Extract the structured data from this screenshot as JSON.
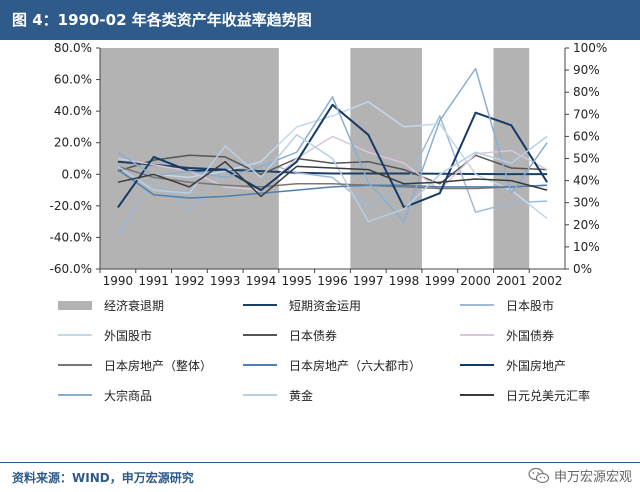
{
  "header": {
    "title": "图 4：1990-02 年各类资产年收益率趋势图"
  },
  "source": {
    "text": "资料来源：WIND，申万宏源研究"
  },
  "watermark": {
    "text": "申万宏源宏观",
    "icon": "wechat-icon"
  },
  "chart_data": {
    "type": "line",
    "x": [
      "1990",
      "1991",
      "1992",
      "1993",
      "1994",
      "1995",
      "1996",
      "1997",
      "1998",
      "1999",
      "2000",
      "2001",
      "2002"
    ],
    "left_axis": {
      "ticks": [
        "80.0%",
        "60.0%",
        "40.0%",
        "20.0%",
        "0.0%",
        "-20.0%",
        "-40.0%",
        "-60.0%"
      ],
      "ylim": [
        -60,
        80
      ]
    },
    "right_axis": {
      "ticks": [
        "100%",
        "90%",
        "80%",
        "70%",
        "60%",
        "50%",
        "40%",
        "30%",
        "20%",
        "10%",
        "0%"
      ],
      "ylim": [
        0,
        100
      ]
    },
    "recessions": [
      {
        "name": "经济衰退期",
        "start": "1990",
        "end": "1994"
      },
      {
        "start": "1997",
        "end": "1998"
      },
      {
        "start": "2001",
        "end": "2001"
      }
    ],
    "series": [
      {
        "name": "短期资金运用",
        "color": "#1c3f66",
        "width": 2,
        "axis": "left",
        "values": [
          8,
          6,
          4,
          3,
          2,
          1,
          0.5,
          0.5,
          0.5,
          0.3,
          0.2,
          0.1,
          0.1
        ]
      },
      {
        "name": "日本股市",
        "color": "#9fbad6",
        "width": 1.5,
        "axis": "left",
        "values": [
          -38,
          -3,
          -24,
          3,
          8,
          1,
          -2,
          -20,
          -9,
          37,
          -24,
          -18,
          -17
        ]
      },
      {
        "name": "外国股市",
        "color": "#c5d7eb",
        "width": 1.5,
        "axis": "left",
        "values": [
          -5,
          0,
          -2,
          2,
          8,
          30,
          37,
          46,
          30,
          32,
          0,
          -10,
          -28
        ]
      },
      {
        "name": "日本债券",
        "color": "#555555",
        "width": 1.5,
        "axis": "left",
        "values": [
          2,
          9,
          12,
          11,
          0,
          10,
          7,
          8,
          3,
          -6,
          12,
          4,
          3
        ]
      },
      {
        "name": "外国债券",
        "color": "#d8c6dc",
        "width": 1.5,
        "axis": "left",
        "values": [
          10,
          6,
          2,
          -8,
          -10,
          10,
          24,
          14,
          7,
          -10,
          13,
          15,
          3
        ]
      },
      {
        "name": "日本房地产（整体）",
        "color": "#777777",
        "width": 1.5,
        "axis": "left",
        "values": [
          5,
          -2,
          -5,
          -7,
          -8,
          -6,
          -6,
          -7,
          -8,
          -9,
          -9,
          -8,
          -7
        ]
      },
      {
        "name": "日本房地产（六大都市）",
        "color": "#4f7fb0",
        "width": 1.5,
        "axis": "left",
        "values": [
          3,
          -13,
          -15,
          -14,
          -12,
          -10,
          -8,
          -7,
          -7,
          -8,
          -8,
          -8,
          -7
        ]
      },
      {
        "name": "外国房地产",
        "color": "#143a66",
        "width": 2,
        "axis": "left",
        "values": [
          -21,
          11,
          2,
          3,
          -10,
          8,
          44,
          25,
          -21,
          -12,
          39,
          31,
          -5
        ]
      },
      {
        "name": "大宗商品",
        "color": "#8aaed2",
        "width": 1.5,
        "axis": "left",
        "values": [
          14,
          -1,
          2,
          -2,
          5,
          14,
          49,
          -5,
          -30,
          34,
          67,
          -12,
          20
        ]
      },
      {
        "name": "黄金",
        "color": "#b8cfe6",
        "width": 1.5,
        "axis": "left",
        "values": [
          5,
          -10,
          -12,
          18,
          -2,
          25,
          10,
          -30,
          -22,
          0,
          14,
          7,
          24
        ]
      },
      {
        "name": "日元兑美元汇率",
        "color": "#3a3a3a",
        "width": 1.5,
        "axis": "left",
        "values": [
          -5,
          0,
          -8,
          8,
          -14,
          5,
          4,
          3,
          -6,
          -5,
          -3,
          -4,
          -10
        ]
      }
    ]
  }
}
